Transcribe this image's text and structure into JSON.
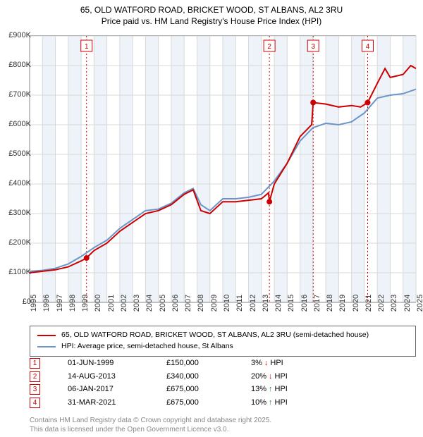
{
  "title": {
    "line1": "65, OLD WATFORD ROAD, BRICKET WOOD, ST ALBANS, AL2 3RU",
    "line2": "Price paid vs. HM Land Registry's House Price Index (HPI)"
  },
  "chart": {
    "type": "line",
    "background_color": "#ffffff",
    "plot_bg_alternate": "#eef3f9",
    "x_years": [
      1995,
      1996,
      1997,
      1998,
      1999,
      2000,
      2001,
      2002,
      2003,
      2004,
      2005,
      2006,
      2007,
      2008,
      2009,
      2010,
      2011,
      2012,
      2013,
      2014,
      2015,
      2016,
      2017,
      2018,
      2019,
      2020,
      2021,
      2022,
      2023,
      2024,
      2025
    ],
    "ylim": [
      0,
      900000
    ],
    "ytick_step": 100000,
    "ytick_labels": [
      "£0",
      "£100K",
      "£200K",
      "£300K",
      "£400K",
      "£500K",
      "£600K",
      "£700K",
      "£800K",
      "£900K"
    ],
    "grid_color": "#d8d8d8",
    "series": {
      "property": {
        "label": "65, OLD WATFORD ROAD, BRICKET WOOD, ST ALBANS, AL2 3RU (semi-detached house)",
        "color": "#cc0000",
        "line_width": 2,
        "data": [
          [
            1995,
            100000
          ],
          [
            1996,
            105000
          ],
          [
            1997,
            110000
          ],
          [
            1998,
            120000
          ],
          [
            1998.5,
            130000
          ],
          [
            1999,
            140000
          ],
          [
            1999.42,
            150000
          ],
          [
            2000,
            175000
          ],
          [
            2001,
            200000
          ],
          [
            2002,
            240000
          ],
          [
            2003,
            270000
          ],
          [
            2004,
            300000
          ],
          [
            2005,
            310000
          ],
          [
            2006,
            330000
          ],
          [
            2007,
            365000
          ],
          [
            2007.7,
            380000
          ],
          [
            2008.3,
            310000
          ],
          [
            2009,
            300000
          ],
          [
            2010,
            340000
          ],
          [
            2011,
            340000
          ],
          [
            2012,
            345000
          ],
          [
            2013,
            350000
          ],
          [
            2013.55,
            370000
          ],
          [
            2013.62,
            340000
          ],
          [
            2014,
            400000
          ],
          [
            2015,
            470000
          ],
          [
            2016,
            560000
          ],
          [
            2016.9,
            600000
          ],
          [
            2017.02,
            675000
          ],
          [
            2018,
            670000
          ],
          [
            2019,
            660000
          ],
          [
            2020,
            665000
          ],
          [
            2020.7,
            660000
          ],
          [
            2021.25,
            675000
          ],
          [
            2022,
            740000
          ],
          [
            2022.6,
            790000
          ],
          [
            2023,
            760000
          ],
          [
            2024,
            770000
          ],
          [
            2024.6,
            800000
          ],
          [
            2025,
            790000
          ]
        ]
      },
      "hpi": {
        "label": "HPI: Average price, semi-detached house, St Albans",
        "color": "#6a95c8",
        "line_width": 2,
        "data": [
          [
            1995,
            105000
          ],
          [
            1996,
            108000
          ],
          [
            1997,
            115000
          ],
          [
            1998,
            130000
          ],
          [
            1999,
            155000
          ],
          [
            2000,
            185000
          ],
          [
            2001,
            210000
          ],
          [
            2002,
            250000
          ],
          [
            2003,
            280000
          ],
          [
            2004,
            310000
          ],
          [
            2005,
            315000
          ],
          [
            2006,
            335000
          ],
          [
            2007,
            370000
          ],
          [
            2007.7,
            385000
          ],
          [
            2008.3,
            330000
          ],
          [
            2009,
            310000
          ],
          [
            2010,
            350000
          ],
          [
            2011,
            350000
          ],
          [
            2012,
            355000
          ],
          [
            2013,
            365000
          ],
          [
            2014,
            410000
          ],
          [
            2015,
            470000
          ],
          [
            2016,
            545000
          ],
          [
            2017,
            590000
          ],
          [
            2018,
            605000
          ],
          [
            2019,
            600000
          ],
          [
            2020,
            610000
          ],
          [
            2021,
            640000
          ],
          [
            2022,
            690000
          ],
          [
            2023,
            700000
          ],
          [
            2024,
            705000
          ],
          [
            2025,
            720000
          ]
        ]
      }
    },
    "sale_markers": [
      {
        "num": "1",
        "x": 1999.42,
        "y": 150000
      },
      {
        "num": "2",
        "x": 2013.62,
        "y": 340000
      },
      {
        "num": "3",
        "x": 2017.02,
        "y": 675000
      },
      {
        "num": "4",
        "x": 2021.25,
        "y": 675000
      }
    ],
    "marker_line_color": "#cc0000",
    "marker_dot_color": "#cc0000",
    "marker_box_fill": "#ffffff",
    "marker_box_stroke": "#cc0000"
  },
  "legend": {
    "items": [
      {
        "color": "#cc0000",
        "text": "65, OLD WATFORD ROAD, BRICKET WOOD, ST ALBANS, AL2 3RU (semi-detached house)"
      },
      {
        "color": "#6a95c8",
        "text": "HPI: Average price, semi-detached house, St Albans"
      }
    ]
  },
  "events": [
    {
      "num": "1",
      "date": "01-JUN-1999",
      "price": "£150,000",
      "delta": "3%",
      "dir": "down",
      "suffix": "HPI"
    },
    {
      "num": "2",
      "date": "14-AUG-2013",
      "price": "£340,000",
      "delta": "20%",
      "dir": "down",
      "suffix": "HPI"
    },
    {
      "num": "3",
      "date": "06-JAN-2017",
      "price": "£675,000",
      "delta": "13%",
      "dir": "up",
      "suffix": "HPI"
    },
    {
      "num": "4",
      "date": "31-MAR-2021",
      "price": "£675,000",
      "delta": "10%",
      "dir": "up",
      "suffix": "HPI"
    }
  ],
  "footer": {
    "line1": "Contains HM Land Registry data © Crown copyright and database right 2025.",
    "line2": "This data is licensed under the Open Government Licence v3.0."
  },
  "arrow_color": {
    "up": "#2a8a2a",
    "down": "#cc0000"
  }
}
